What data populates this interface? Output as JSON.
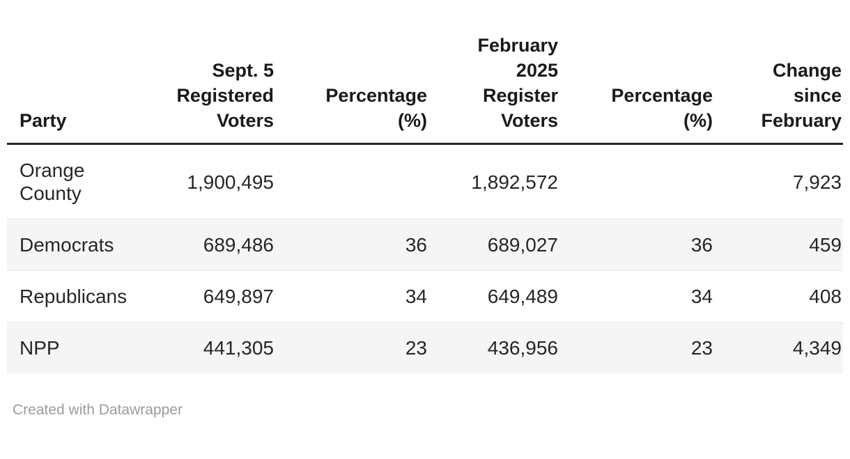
{
  "chart_data": {
    "type": "table",
    "columns": [
      "Party",
      "Sept. 5 Registered Voters",
      "Percentage (%)",
      "February 2025 Register Voters",
      "Percentage (%)",
      "Change since February"
    ],
    "rows": [
      {
        "party": "Orange County",
        "sept5_registered": 1900495,
        "pct_sept": null,
        "feb2025_registered": 1892572,
        "pct_feb": null,
        "change_since_feb": 7923
      },
      {
        "party": "Democrats",
        "sept5_registered": 689486,
        "pct_sept": 36,
        "feb2025_registered": 689027,
        "pct_feb": 36,
        "change_since_feb": 459
      },
      {
        "party": "Republicans",
        "sept5_registered": 649897,
        "pct_sept": 34,
        "feb2025_registered": 649489,
        "pct_feb": 34,
        "change_since_feb": 408
      },
      {
        "party": "NPP",
        "sept5_registered": 441305,
        "pct_sept": 23,
        "feb2025_registered": 436956,
        "pct_feb": 23,
        "change_since_feb": 4349
      }
    ]
  },
  "table": {
    "headers": [
      "Party",
      "Sept. 5\nRegistered\nVoters",
      "Percentage\n(%)",
      "February\n2025\nRegister\nVoters",
      "Percentage\n(%)",
      "Change\nsince\nFebruary"
    ],
    "rows": [
      [
        "Orange\nCounty",
        "1,900,495",
        "",
        "1,892,572",
        "",
        "7,923"
      ],
      [
        "Democrats",
        "689,486",
        "36",
        "689,027",
        "36",
        "459"
      ],
      [
        "Republicans",
        "649,897",
        "34",
        "649,489",
        "34",
        "408"
      ],
      [
        "NPP",
        "441,305",
        "23",
        "436,956",
        "23",
        "4,349"
      ]
    ]
  },
  "footer": {
    "attribution": "Created with Datawrapper"
  },
  "colors": {
    "header_rule": "#222222",
    "row_stripe": "#f5f5f5",
    "row_divider": "#e9e9e9",
    "text": "#262626",
    "attribution_text": "#9b9b9b",
    "background": "#ffffff"
  }
}
